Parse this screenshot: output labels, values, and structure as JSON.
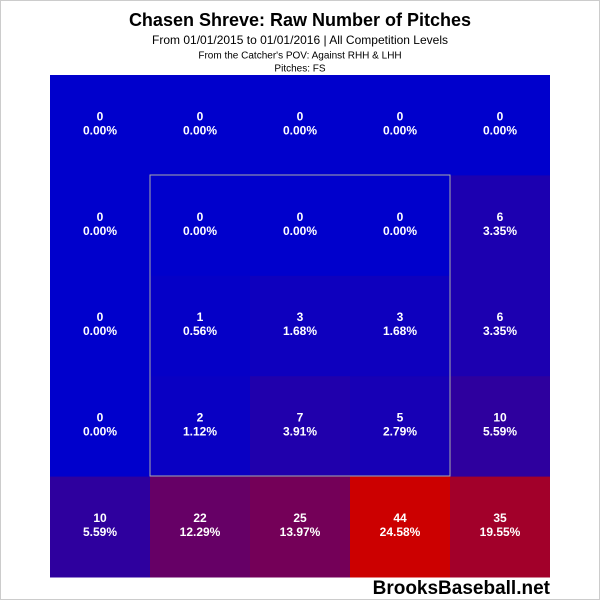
{
  "chart_data": {
    "type": "heatmap",
    "title": "Chasen Shreve: Raw Number of Pitches",
    "subtitle": "From 01/01/2015 to 01/01/2016 | All Competition Levels",
    "note": "From the Catcher's POV:  Against RHH & LHH",
    "pitches": "Pitches:  FS",
    "values": [
      [
        0,
        0,
        0,
        0,
        0
      ],
      [
        0,
        0,
        0,
        0,
        6
      ],
      [
        0,
        1,
        3,
        3,
        6
      ],
      [
        0,
        2,
        7,
        5,
        10
      ],
      [
        10,
        22,
        25,
        44,
        35
      ]
    ],
    "percent_labels": [
      [
        "0.00%",
        "0.00%",
        "0.00%",
        "0.00%",
        "0.00%"
      ],
      [
        "0.00%",
        "0.00%",
        "0.00%",
        "0.00%",
        "3.35%"
      ],
      [
        "0.00%",
        "0.56%",
        "1.68%",
        "1.68%",
        "3.35%"
      ],
      [
        "0.00%",
        "1.12%",
        "3.91%",
        "2.79%",
        "5.59%"
      ],
      [
        "5.59%",
        "12.29%",
        "13.97%",
        "24.58%",
        "19.55%"
      ]
    ],
    "colors": [
      "#0000cc",
      "#cc0000"
    ],
    "watermark": "BrooksBaseball.net"
  }
}
